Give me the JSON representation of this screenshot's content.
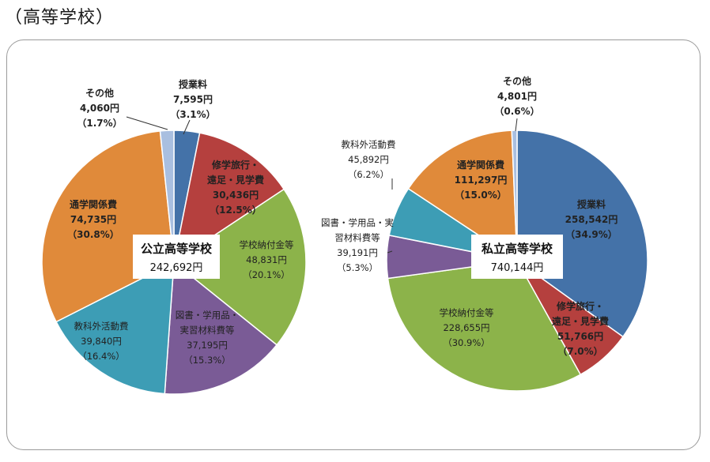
{
  "heading": "（高等学校）",
  "colors": {
    "授業料": "#4472a8",
    "修学旅行・遠足・見学費": "#b5403e",
    "学校納付金等": "#8cb34a",
    "図書・学用品・実習材料費等": "#7a5b96",
    "教科外活動費": "#3d9db5",
    "通学関係費": "#e08a3a",
    "その他": "#a9bfe0"
  },
  "chart_data": [
    {
      "type": "pie",
      "title": "公立高等学校",
      "total": "242,692円",
      "slices": [
        {
          "key": "授業料",
          "lines": [
            "授業料"
          ],
          "value": 7595,
          "value_label": "7,595円",
          "pct": "（3.1%）"
        },
        {
          "key": "修学旅行・遠足・見学費",
          "lines": [
            "修学旅行・",
            "遠足・見学費"
          ],
          "value": 30436,
          "value_label": "30,436円",
          "pct": "（12.5%）"
        },
        {
          "key": "学校納付金等",
          "lines": [
            "学校納付金等"
          ],
          "value": 48831,
          "value_label": "48,831円",
          "pct": "（20.1%）"
        },
        {
          "key": "図書・学用品・実習材料費等",
          "lines": [
            "図書・学用品・",
            "実習材料費等"
          ],
          "value": 37195,
          "value_label": "37,195円",
          "pct": "（15.3%）"
        },
        {
          "key": "教科外活動費",
          "lines": [
            "教科外活動費"
          ],
          "value": 39840,
          "value_label": "39,840円",
          "pct": "（16.4%）"
        },
        {
          "key": "通学関係費",
          "lines": [
            "通学関係費"
          ],
          "value": 74735,
          "value_label": "74,735円",
          "pct": "（30.8%）"
        },
        {
          "key": "その他",
          "lines": [
            "その他"
          ],
          "value": 4060,
          "value_label": "4,060円",
          "pct": "（1.7%）"
        }
      ]
    },
    {
      "type": "pie",
      "title": "私立高等学校",
      "total": "740,144円",
      "slices": [
        {
          "key": "授業料",
          "lines": [
            "授業料"
          ],
          "value": 258542,
          "value_label": "258,542円",
          "pct": "（34.9%）"
        },
        {
          "key": "修学旅行・遠足・見学費",
          "lines": [
            "修学旅行・",
            "遠足・見学費"
          ],
          "value": 51766,
          "value_label": "51,766円",
          "pct": "（7.0%）"
        },
        {
          "key": "学校納付金等",
          "lines": [
            "学校納付金等"
          ],
          "value": 228655,
          "value_label": "228,655円",
          "pct": "（30.9%）"
        },
        {
          "key": "図書・学用品・実習材料費等",
          "lines": [
            "図書・学用品・実",
            "習材料費等"
          ],
          "value": 39191,
          "value_label": "39,191円",
          "pct": "（5.3%）"
        },
        {
          "key": "教科外活動費",
          "lines": [
            "教科外活動費"
          ],
          "value": 45892,
          "value_label": "45,892円",
          "pct": "（6.2%）"
        },
        {
          "key": "通学関係費",
          "lines": [
            "通学関係費"
          ],
          "value": 111297,
          "value_label": "111,297円",
          "pct": "（15.0%）"
        },
        {
          "key": "その他",
          "lines": [
            "その他"
          ],
          "value": 4801,
          "value_label": "4,801円",
          "pct": "（0.6%）"
        }
      ]
    }
  ]
}
